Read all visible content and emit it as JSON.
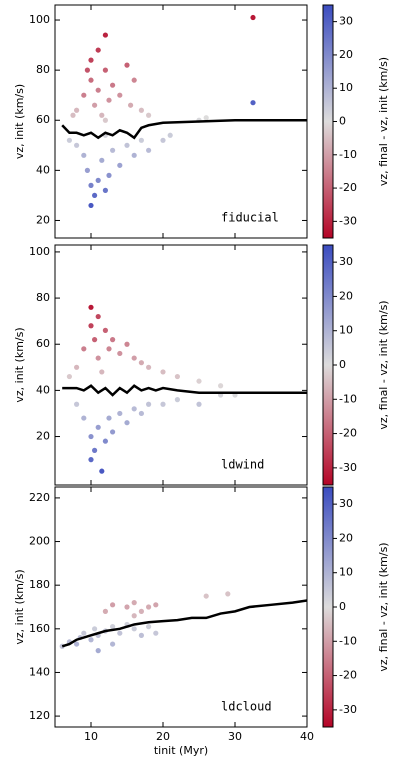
{
  "chart_data": [
    {
      "type": "scatter",
      "ylabel": "vz, init (km/s)",
      "annotation": "fiducial",
      "xlim": [
        5,
        40
      ],
      "xticks": [
        10,
        20,
        30,
        40
      ],
      "ylim": [
        13,
        106
      ],
      "yticks": [
        20,
        40,
        60,
        80,
        100
      ],
      "points": {
        "x": [
          9,
          9.5,
          10,
          10,
          10.5,
          11,
          11,
          11.5,
          12,
          12,
          12.5,
          13,
          14,
          15,
          15.5,
          16,
          17,
          18,
          8,
          7.5,
          12,
          8,
          9,
          9.5,
          10,
          10.5,
          10,
          11,
          11.5,
          12,
          12.5,
          13,
          14,
          15,
          16,
          17,
          18,
          20,
          21,
          7,
          12,
          25,
          26,
          32.5,
          32.5
        ],
        "y": [
          70,
          80,
          84,
          76,
          66,
          88,
          72,
          62,
          94,
          80,
          68,
          74,
          70,
          82,
          66,
          76,
          64,
          62,
          64,
          62,
          60,
          50,
          46,
          40,
          34,
          30,
          26,
          36,
          44,
          32,
          38,
          48,
          42,
          50,
          46,
          52,
          48,
          52,
          54,
          52,
          54,
          60,
          61,
          101,
          67
        ],
        "c": [
          -15,
          -22,
          -25,
          -18,
          -10,
          -26,
          -15,
          -6,
          -30,
          -20,
          -12,
          -16,
          -12,
          -20,
          -8,
          -14,
          -5,
          -3,
          -6,
          -5,
          -3,
          5,
          10,
          15,
          22,
          28,
          32,
          20,
          12,
          25,
          18,
          8,
          14,
          6,
          10,
          4,
          8,
          5,
          4,
          4,
          2,
          1,
          0,
          -32,
          30
        ]
      },
      "line": {
        "color": "#000000",
        "x": [
          6,
          7,
          8,
          9,
          10,
          11,
          12,
          13,
          14,
          15,
          16,
          17,
          18,
          20,
          25,
          30,
          35,
          40
        ],
        "y": [
          58,
          55,
          55,
          54,
          55,
          53,
          55,
          54,
          56,
          55,
          53,
          57,
          58,
          59,
          59.5,
          60,
          60,
          60
        ]
      },
      "colorbar": {
        "label": "vz, final - vz, init (km/s)",
        "lim": [
          -35,
          35
        ],
        "ticks": [
          -30,
          -20,
          -10,
          0,
          10,
          20,
          30
        ],
        "colors": [
          "#b40426",
          "#dddcdc",
          "#3b4cc0"
        ]
      }
    },
    {
      "type": "scatter",
      "ylabel": "vz, init (km/s)",
      "annotation": "ldwind",
      "xlim": [
        5,
        40
      ],
      "xticks": [
        10,
        20,
        30,
        40
      ],
      "ylim": [
        -1,
        103
      ],
      "yticks": [
        20,
        40,
        60,
        80,
        100
      ],
      "points": {
        "x": [
          9,
          10,
          10,
          10.5,
          11,
          11,
          12,
          12.5,
          13,
          14,
          15,
          16,
          17,
          18,
          20,
          22,
          25,
          28,
          8,
          7,
          11.5,
          8,
          9,
          10,
          10,
          10.5,
          11,
          11.5,
          12,
          12.5,
          13,
          14,
          15,
          16,
          17,
          18,
          20,
          22,
          25,
          28,
          30
        ],
        "y": [
          58,
          76,
          68,
          62,
          72,
          54,
          66,
          58,
          62,
          56,
          60,
          54,
          52,
          50,
          48,
          46,
          44,
          42,
          50,
          46,
          48,
          34,
          28,
          20,
          10,
          14,
          24,
          5,
          18,
          28,
          22,
          30,
          26,
          32,
          30,
          34,
          34,
          36,
          34,
          38,
          38
        ],
        "c": [
          -15,
          -32,
          -25,
          -20,
          -24,
          -12,
          -20,
          -14,
          -16,
          -12,
          -14,
          -10,
          -8,
          -6,
          -5,
          -4,
          -2,
          -1,
          -6,
          -3,
          -6,
          5,
          10,
          18,
          28,
          24,
          15,
          32,
          20,
          12,
          16,
          10,
          12,
          8,
          8,
          6,
          5,
          4,
          6,
          2,
          1
        ]
      },
      "line": {
        "color": "#000000",
        "x": [
          6,
          8,
          9,
          10,
          11,
          12,
          13,
          14,
          15,
          16,
          17,
          18,
          19,
          20,
          22,
          25,
          30,
          35,
          40
        ],
        "y": [
          41,
          41,
          40,
          42,
          39,
          41,
          38,
          41,
          39,
          42,
          40,
          41,
          40,
          41,
          40,
          39,
          39,
          39,
          39
        ]
      },
      "colorbar": {
        "label": "vz, final - vz, init (km/s)",
        "lim": [
          -35,
          35
        ],
        "ticks": [
          -30,
          -20,
          -10,
          0,
          10,
          20,
          30
        ],
        "colors": [
          "#b40426",
          "#dddcdc",
          "#3b4cc0"
        ]
      }
    },
    {
      "type": "scatter",
      "ylabel": "vz, init (km/s)",
      "annotation": "ldcloud",
      "xlabel": "tinit (Myr)",
      "xlim": [
        5,
        40
      ],
      "xticks": [
        10,
        20,
        30,
        40
      ],
      "ylim": [
        115,
        225
      ],
      "yticks": [
        120,
        140,
        160,
        180,
        200,
        220
      ],
      "points": {
        "x": [
          6,
          7,
          8,
          8.5,
          9,
          10,
          10.5,
          11,
          12,
          13,
          14,
          15,
          16,
          17,
          18,
          19,
          11,
          13,
          12,
          13,
          15,
          16,
          17,
          18,
          19,
          16,
          26,
          29
        ],
        "y": [
          152,
          154,
          153,
          156,
          158,
          155,
          160,
          157,
          159,
          161,
          158,
          162,
          160,
          157,
          161,
          158,
          150,
          153,
          168,
          171,
          170,
          172,
          168,
          170,
          171,
          166,
          175,
          176
        ],
        "c": [
          6,
          8,
          10,
          7,
          5,
          9,
          4,
          6,
          5,
          3,
          6,
          3,
          4,
          7,
          3,
          5,
          12,
          9,
          -8,
          -10,
          -9,
          -8,
          -7,
          -8,
          -9,
          -6,
          -4,
          -4
        ]
      },
      "line": {
        "color": "#000000",
        "x": [
          6,
          7,
          8,
          10,
          12,
          14,
          16,
          18,
          20,
          22,
          24,
          26,
          28,
          30,
          32,
          35,
          38,
          40
        ],
        "y": [
          152,
          153,
          155,
          157,
          159,
          160,
          162,
          163,
          163.5,
          164,
          165,
          165,
          167,
          168,
          170,
          171,
          172,
          173
        ]
      },
      "colorbar": {
        "label": "vz, final - vz, init (km/s)",
        "lim": [
          -35,
          35
        ],
        "ticks": [
          -30,
          -20,
          -10,
          0,
          10,
          20,
          30
        ],
        "colors": [
          "#b40426",
          "#dddcdc",
          "#3b4cc0"
        ]
      }
    }
  ]
}
